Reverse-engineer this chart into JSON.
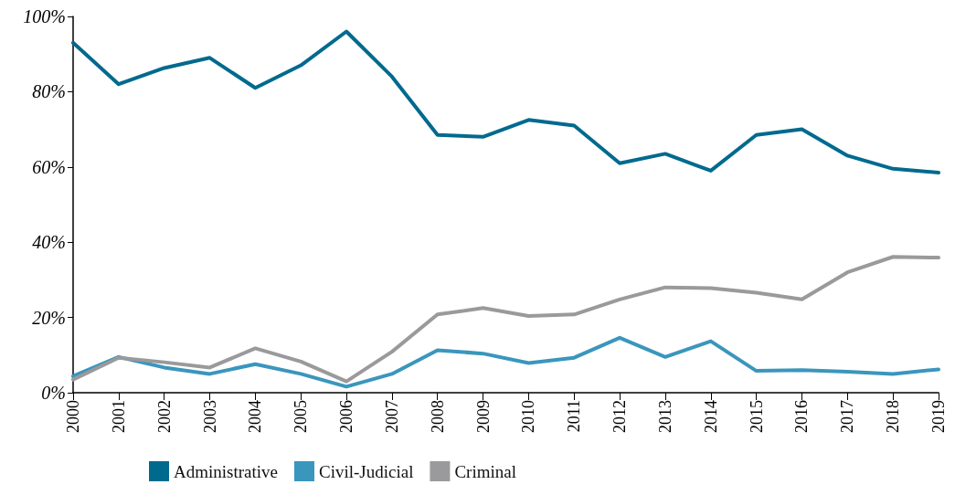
{
  "chart_data": {
    "type": "line",
    "categories": [
      "2000",
      "2001",
      "2002",
      "2003",
      "2004",
      "2005",
      "2006",
      "2007",
      "2008",
      "2009",
      "2010",
      "2011",
      "2012",
      "2013",
      "2014",
      "2015",
      "2016",
      "2017",
      "2018",
      "2019"
    ],
    "series": [
      {
        "name": "Administrative",
        "color": "#006a8e",
        "values": [
          93,
          82,
          86.3,
          89,
          81,
          87,
          96,
          84,
          68.5,
          68,
          72.5,
          71,
          61,
          63.5,
          59,
          68.5,
          70,
          63,
          59.5,
          58.5
        ]
      },
      {
        "name": "Civil-Judicial",
        "color": "#3a96bd",
        "values": [
          4.4,
          9.5,
          6.7,
          5,
          7.6,
          5,
          1.6,
          5,
          11.3,
          10.4,
          7.9,
          9.3,
          14.6,
          9.5,
          13.7,
          5.8,
          6,
          5.6,
          5,
          6.2
        ]
      },
      {
        "name": "Criminal",
        "color": "#9a9a9c",
        "values": [
          3.5,
          9.3,
          8.1,
          6.7,
          11.8,
          8.3,
          3,
          10.9,
          20.8,
          22.5,
          20.4,
          20.8,
          24.8,
          28,
          27.8,
          26.6,
          24.8,
          32,
          36.1,
          35.9
        ]
      }
    ],
    "ylim": [
      0,
      100
    ],
    "yticks": [
      {
        "value": 0,
        "label": "0%"
      },
      {
        "value": 20,
        "label": "20%"
      },
      {
        "value": 40,
        "label": "40%"
      },
      {
        "value": 60,
        "label": "60%"
      },
      {
        "value": 80,
        "label": "80%"
      },
      {
        "value": 100,
        "label": "100%"
      }
    ],
    "grid": false,
    "legend": "bottom",
    "marker": "none",
    "line_style": "solid"
  }
}
